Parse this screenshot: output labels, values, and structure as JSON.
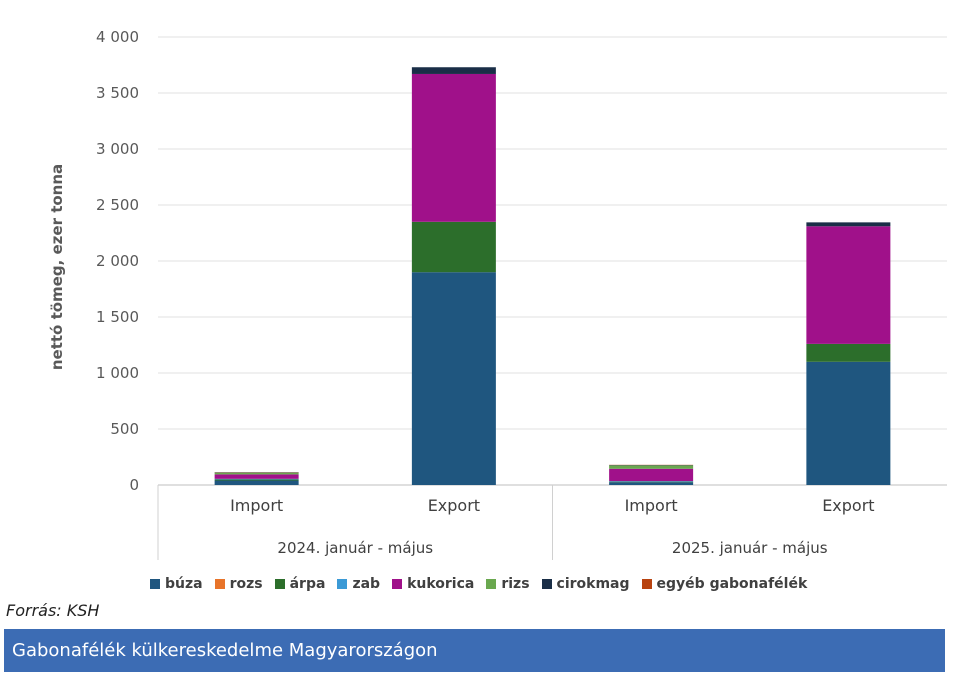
{
  "chart_data": {
    "type": "bar",
    "stacked": true,
    "ylabel": "nettó tömeg, ezer tonna",
    "ylim": [
      0,
      4000
    ],
    "yticks": [
      0,
      500,
      1000,
      1500,
      2000,
      2500,
      3000,
      3500,
      4000
    ],
    "ytick_labels": [
      "0",
      "500",
      "1 000",
      "1 500",
      "2 000",
      "2 500",
      "3 000",
      "3 500",
      "4 000"
    ],
    "groups": [
      "2024. január - május",
      "2025. január - május"
    ],
    "categories": [
      "Import",
      "Export",
      "Import",
      "Export"
    ],
    "category_group": [
      0,
      0,
      1,
      1
    ],
    "series": [
      {
        "name": "búza",
        "color": "#1f567f",
        "values": [
          40,
          1900,
          25,
          1100
        ]
      },
      {
        "name": "rozs",
        "color": "#e8742a",
        "values": [
          0,
          0,
          0,
          0
        ]
      },
      {
        "name": "árpa",
        "color": "#2c6e2b",
        "values": [
          10,
          450,
          5,
          160
        ]
      },
      {
        "name": "zab",
        "color": "#3b9ad6",
        "values": [
          5,
          0,
          5,
          0
        ]
      },
      {
        "name": "kukorica",
        "color": "#a0118a",
        "values": [
          40,
          1320,
          110,
          1050
        ]
      },
      {
        "name": "rizs",
        "color": "#6aa84f",
        "values": [
          15,
          0,
          30,
          0
        ]
      },
      {
        "name": "cirokmag",
        "color": "#1a2e47",
        "values": [
          3,
          60,
          3,
          35
        ]
      },
      {
        "name": "egyéb gabonafélék",
        "color": "#b84310",
        "values": [
          2,
          0,
          2,
          0
        ]
      }
    ]
  },
  "source": "Forrás: KSH",
  "caption": "Gabonafélék külkereskedelme Magyarországon"
}
